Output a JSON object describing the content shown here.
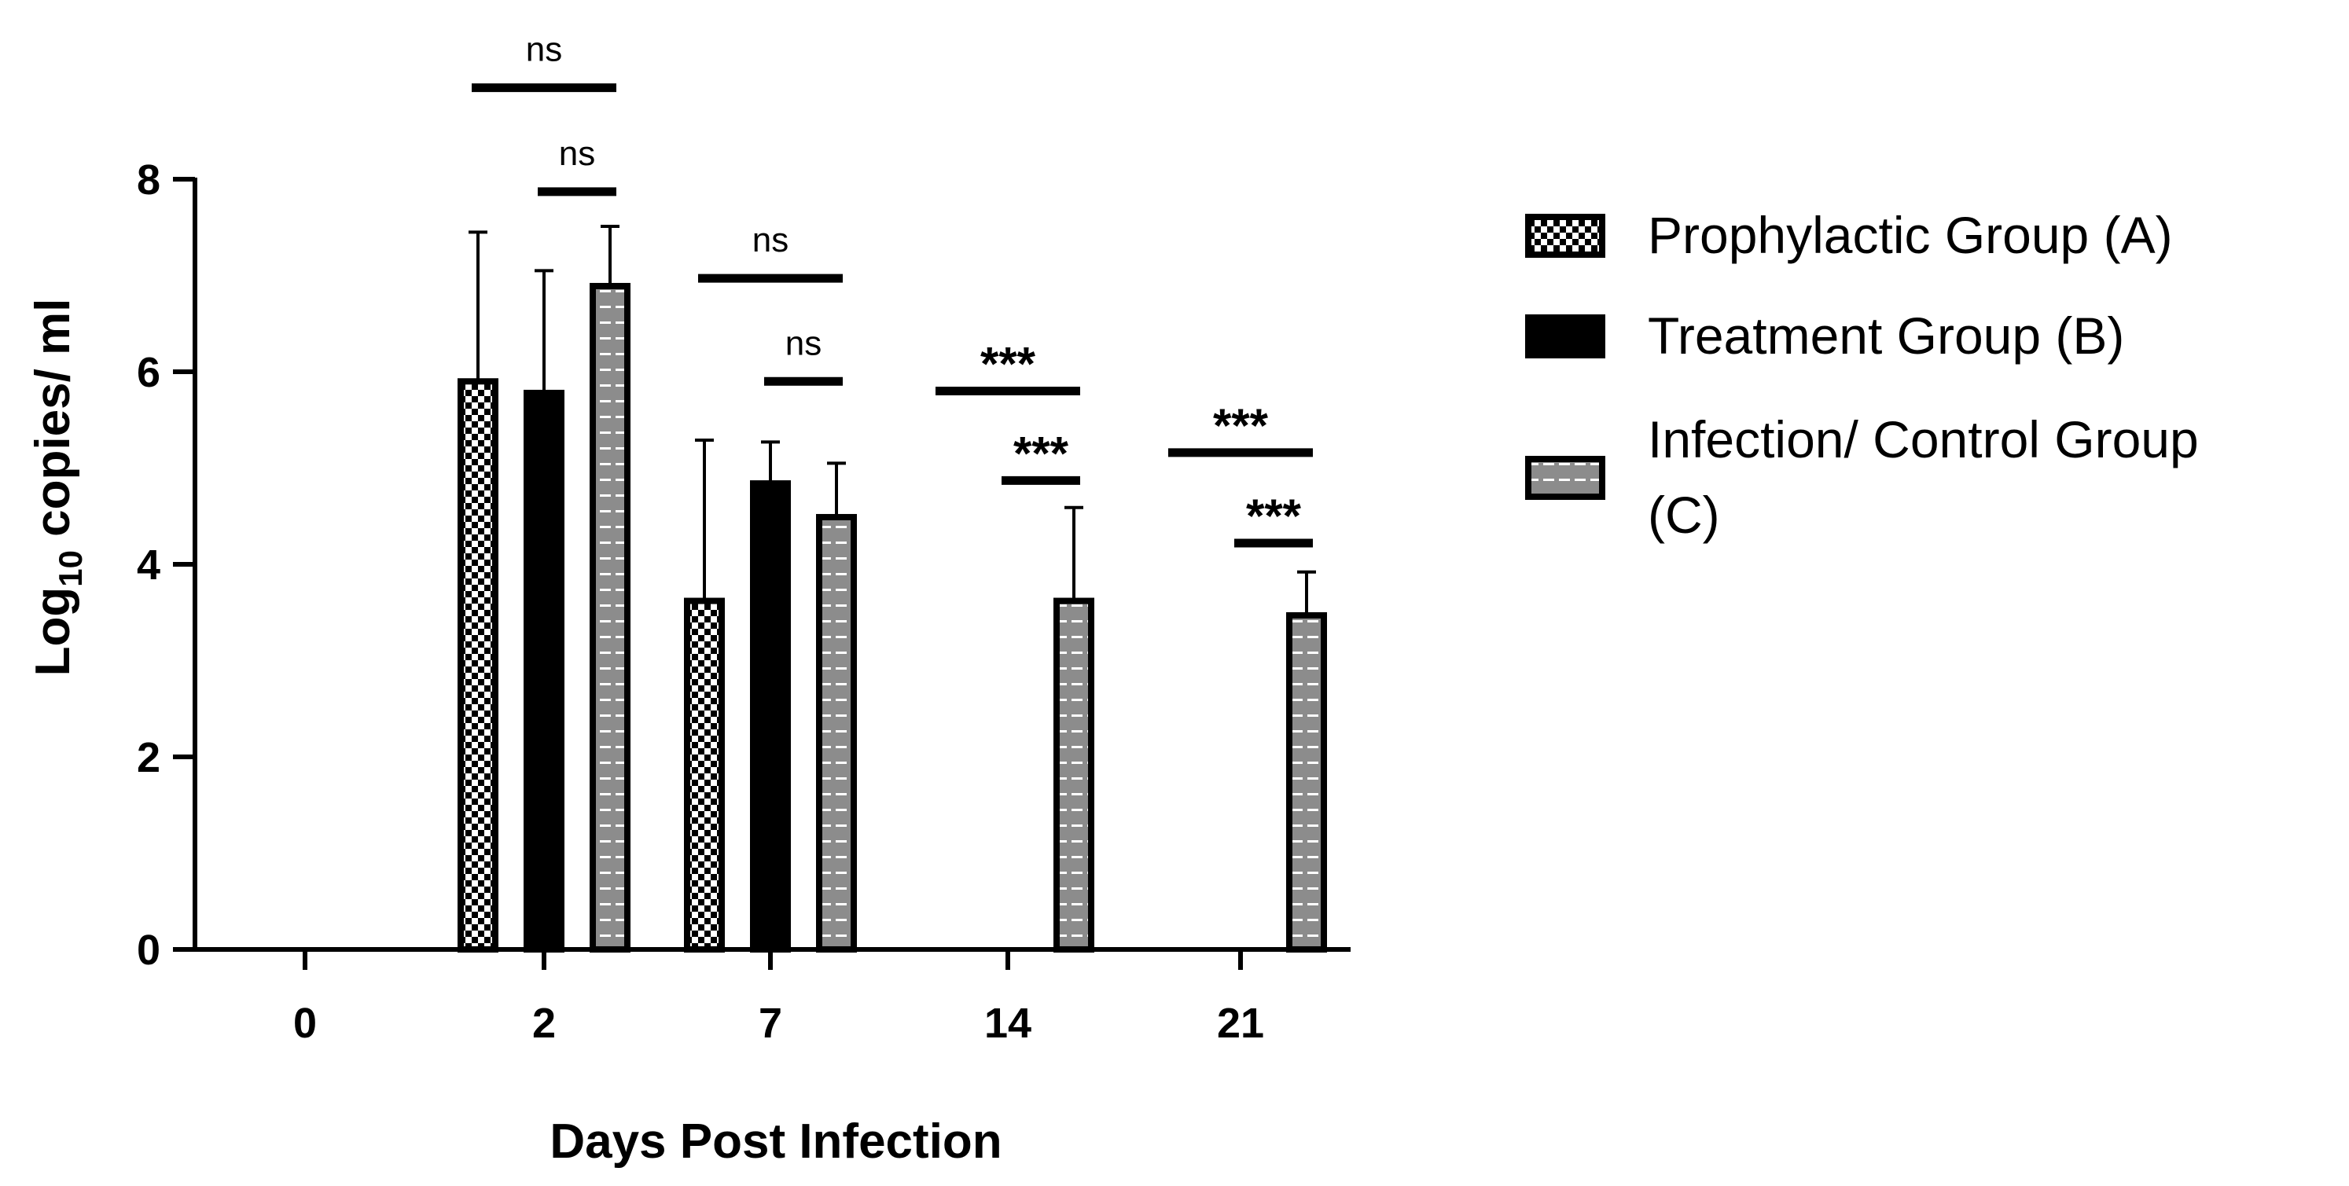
{
  "chart_data": {
    "type": "bar",
    "title": "",
    "xlabel": "Days Post Infection",
    "ylabel_main": "Log",
    "ylabel_sub": "10",
    "ylabel_rest": " copies/ ml",
    "ylim": [
      0,
      8
    ],
    "yticks": [
      "0",
      "2",
      "4",
      "6",
      "8"
    ],
    "grid": false,
    "legend_position": "right",
    "categories": [
      "0",
      "2",
      "7",
      "14",
      "21"
    ],
    "series": [
      {
        "name": "Prophylactic Group (A)",
        "pattern": "checker",
        "values": [
          0,
          5.9,
          3.62,
          0,
          0
        ],
        "errors": [
          0,
          1.55,
          1.67,
          0,
          0
        ]
      },
      {
        "name": "Treatment Group (B)",
        "pattern": "solid",
        "values": [
          0,
          5.78,
          4.84,
          0,
          0
        ],
        "errors": [
          0,
          1.27,
          0.43,
          0,
          0
        ]
      },
      {
        "name_line1": "Infection/ Control Group",
        "name_line2": "(C)",
        "pattern": "striped",
        "values": [
          0,
          6.89,
          4.49,
          3.62,
          3.47
        ],
        "errors": [
          0,
          0.62,
          0.56,
          0.97,
          0.45
        ]
      }
    ],
    "annotations": [
      {
        "category": 1,
        "from_series": 0,
        "to_series": 2,
        "level": 8.95,
        "label": "ns",
        "style": "ns"
      },
      {
        "category": 1,
        "from_series": 1,
        "to_series": 2,
        "level": 7.87,
        "label": "ns",
        "style": "ns"
      },
      {
        "category": 2,
        "from_series": 0,
        "to_series": 2,
        "level": 6.97,
        "label": "ns",
        "style": "ns"
      },
      {
        "category": 2,
        "from_series": 1,
        "to_series": 2,
        "level": 5.9,
        "label": "ns",
        "style": "ns"
      },
      {
        "category": 3,
        "from_series": 0,
        "to_series": 2,
        "level": 5.8,
        "label": "***",
        "style": "stars"
      },
      {
        "category": 3,
        "from_series": 1,
        "to_series": 2,
        "level": 4.87,
        "label": "***",
        "style": "stars"
      },
      {
        "category": 4,
        "from_series": 0,
        "to_series": 2,
        "level": 5.16,
        "label": "***",
        "style": "stars"
      },
      {
        "category": 4,
        "from_series": 1,
        "to_series": 2,
        "level": 4.22,
        "label": "***",
        "style": "stars"
      }
    ],
    "colors": {
      "fill": "#000000",
      "stripe_base": "#8c8c8c",
      "stripe_line": "#ffffff",
      "checker_light": "#ffffff"
    }
  }
}
